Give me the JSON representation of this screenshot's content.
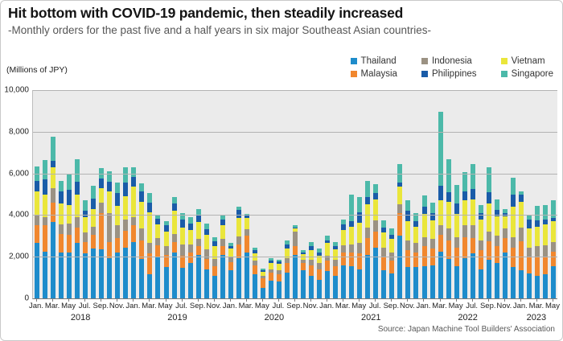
{
  "header": {
    "title": "Hit bottom with COVID-19 pandemic, then steadily increased",
    "subtitle": "-Monthly orders for the past five and a half years in six major Southeast Asian countries-"
  },
  "chart_data": {
    "type": "bar",
    "stacked": true,
    "title": "Hit bottom with COVID-19 pandemic, then steadily increased",
    "subtitle": "-Monthly orders for the past five and a half years in six major Southeast Asian countries-",
    "unit_label": "(Millions of JPY)",
    "source": "Source: Japan Machine Tool Builders' Association",
    "ylim": [
      0,
      10000
    ],
    "ytick_values": [
      0,
      2000,
      4000,
      6000,
      8000,
      10000
    ],
    "ytick_labels": [
      "0",
      "2,000",
      "4,000",
      "6,000",
      "8,000",
      "10,000"
    ],
    "x_tick_cycle": [
      "Jan.",
      "Mar.",
      "May",
      "Jul.",
      "Sep.",
      "Nov."
    ],
    "years": [
      {
        "label": "2018",
        "months": 12
      },
      {
        "label": "2019",
        "months": 12
      },
      {
        "label": "2020",
        "months": 12
      },
      {
        "label": "2021",
        "months": 12
      },
      {
        "label": "2022",
        "months": 12
      },
      {
        "label": "2023",
        "months": 5
      }
    ],
    "legend_columns": [
      [
        "Thailand",
        "Malaysia"
      ],
      [
        "Indonesia",
        "Philippines"
      ],
      [
        "Vietnam",
        "Singapore"
      ]
    ],
    "stack_order": [
      "Thailand",
      "Malaysia",
      "Indonesia",
      "Vietnam",
      "Philippines",
      "Singapore"
    ],
    "colors": {
      "Thailand": "#1E8CCB",
      "Malaysia": "#F1872E",
      "Indonesia": "#9B9283",
      "Philippines": "#1A5CA8",
      "Vietnam": "#EAE63B",
      "Singapore": "#4CB9A9"
    },
    "plot_bg": "#ebebeb",
    "gridline_color": "#b3b3b3",
    "series": [
      {
        "name": "Thailand",
        "values": [
          2650,
          2250,
          3650,
          2200,
          2200,
          2650,
          2150,
          2400,
          2350,
          1950,
          2200,
          2450,
          2700,
          1900,
          1150,
          2000,
          1500,
          2200,
          1450,
          1700,
          2100,
          1400,
          1100,
          2100,
          1350,
          1950,
          2200,
          1150,
          500,
          850,
          800,
          1250,
          2100,
          1350,
          1100,
          900,
          1300,
          1100,
          1600,
          1550,
          1400,
          2100,
          2450,
          1350,
          1200,
          3000,
          1500,
          1500,
          1550,
          1600,
          2250,
          1900,
          1550,
          1950,
          2150,
          1400,
          1850,
          1700,
          2200,
          1500,
          1350,
          1200,
          1100,
          1150,
          1550
        ]
      },
      {
        "name": "Malaysia",
        "values": [
          850,
          1250,
          950,
          900,
          850,
          750,
          550,
          650,
          1750,
          750,
          700,
          800,
          800,
          900,
          1000,
          550,
          600,
          500,
          600,
          500,
          400,
          500,
          450,
          400,
          400,
          630,
          800,
          450,
          450,
          400,
          350,
          450,
          400,
          350,
          500,
          500,
          500,
          450,
          600,
          650,
          750,
          800,
          750,
          650,
          600,
          1080,
          800,
          700,
          950,
          800,
          800,
          900,
          900,
          1000,
          750,
          900,
          900,
          800,
          700,
          950,
          1400,
          800,
          900,
          850,
          700
        ]
      },
      {
        "name": "Indonesia",
        "values": [
          500,
          400,
          700,
          450,
          550,
          500,
          450,
          400,
          500,
          1400,
          600,
          550,
          400,
          550,
          500,
          350,
          400,
          400,
          550,
          400,
          350,
          450,
          350,
          350,
          250,
          380,
          320,
          200,
          120,
          150,
          200,
          250,
          700,
          150,
          250,
          300,
          250,
          300,
          350,
          400,
          500,
          500,
          550,
          450,
          400,
          450,
          500,
          450,
          450,
          450,
          450,
          550,
          500,
          550,
          600,
          500,
          450,
          500,
          450,
          500,
          650,
          450,
          500,
          550,
          450
        ]
      },
      {
        "name": "Vietnam",
        "values": [
          1150,
          1100,
          1000,
          1000,
          900,
          1100,
          750,
          850,
          700,
          1050,
          950,
          1100,
          1450,
          1300,
          1500,
          650,
          700,
          1100,
          800,
          700,
          800,
          700,
          600,
          650,
          400,
          890,
          530,
          350,
          220,
          300,
          300,
          450,
          150,
          270,
          450,
          350,
          600,
          500,
          750,
          850,
          1000,
          1100,
          1000,
          700,
          650,
          820,
          900,
          800,
          1100,
          900,
          1200,
          1300,
          1100,
          1200,
          1250,
          1000,
          1350,
          950,
          600,
          1450,
          1250,
          900,
          950,
          1000,
          1000
        ]
      },
      {
        "name": "Philippines",
        "values": [
          500,
          700,
          300,
          600,
          700,
          600,
          300,
          500,
          450,
          450,
          600,
          650,
          500,
          500,
          450,
          280,
          310,
          350,
          390,
          300,
          330,
          280,
          250,
          280,
          130,
          400,
          150,
          150,
          60,
          120,
          120,
          200,
          50,
          100,
          200,
          150,
          150,
          150,
          250,
          250,
          500,
          350,
          300,
          250,
          200,
          230,
          500,
          250,
          350,
          350,
          700,
          450,
          500,
          450,
          500,
          300,
          550,
          300,
          150,
          600,
          350,
          450,
          300,
          250,
          160
        ]
      },
      {
        "name": "Singapore",
        "values": [
          700,
          950,
          1150,
          500,
          800,
          1100,
          500,
          600,
          500,
          500,
          500,
          750,
          450,
          390,
          450,
          200,
          200,
          300,
          300,
          300,
          300,
          250,
          200,
          250,
          120,
          160,
          50,
          150,
          100,
          130,
          100,
          200,
          100,
          100,
          200,
          200,
          200,
          200,
          250,
          1300,
          700,
          800,
          450,
          350,
          300,
          870,
          500,
          400,
          550,
          500,
          3550,
          1600,
          900,
          900,
          1200,
          400,
          1200,
          500,
          200,
          800,
          150,
          200,
          700,
          700,
          840
        ]
      }
    ]
  }
}
